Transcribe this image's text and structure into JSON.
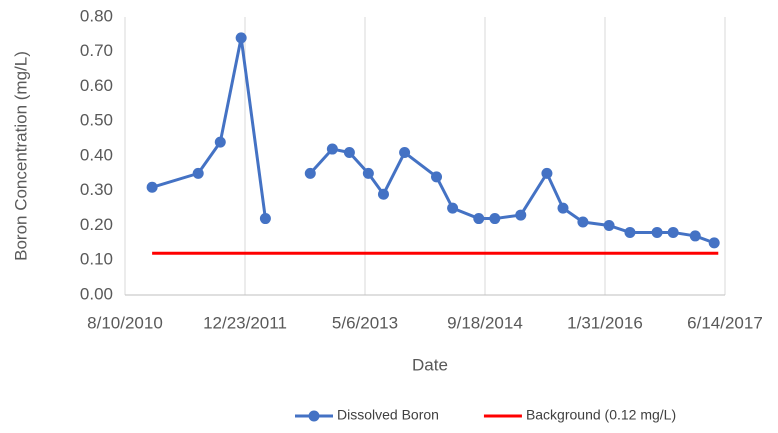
{
  "chart_data": {
    "type": "line",
    "xlabel": "Date",
    "ylabel": "Boron Concentration  (mg/L)",
    "xlim": [
      "2010-08-10",
      "2017-06-14"
    ],
    "xticks": [
      {
        "value": "2010-08-10",
        "label": "8/10/2010"
      },
      {
        "value": "2011-12-23",
        "label": "12/23/2011"
      },
      {
        "value": "2013-05-06",
        "label": "5/6/2013"
      },
      {
        "value": "2014-09-18",
        "label": "9/18/2014"
      },
      {
        "value": "2016-01-31",
        "label": "1/31/2016"
      },
      {
        "value": "2017-06-14",
        "label": "6/14/2017"
      }
    ],
    "ylim": [
      0,
      0.8
    ],
    "yticks": [
      {
        "value": 0,
        "label": "0.00"
      },
      {
        "value": 0.1,
        "label": "0.10"
      },
      {
        "value": 0.2,
        "label": "0.20"
      },
      {
        "value": 0.3,
        "label": "0.30"
      },
      {
        "value": 0.4,
        "label": "0.40"
      },
      {
        "value": 0.5,
        "label": "0.50"
      },
      {
        "value": 0.6,
        "label": "0.60"
      },
      {
        "value": 0.7,
        "label": "0.70"
      },
      {
        "value": 0.8,
        "label": "0.80"
      }
    ],
    "grid": "x",
    "legend": "bottom",
    "series": [
      {
        "name": "Dissolved Boron",
        "color": "#4472c4",
        "marker": true,
        "x": [
          "2010-12-01",
          "2011-06-11",
          "2011-09-11",
          "2011-12-07",
          "2012-03-17",
          null,
          "2012-09-20",
          "2012-12-21",
          "2013-03-02",
          "2013-05-20",
          "2013-07-22",
          "2013-10-18",
          "2014-02-28",
          "2014-05-06",
          "2014-08-23",
          "2014-10-29",
          "2015-02-14",
          "2015-06-03",
          "2015-08-09",
          "2015-10-31",
          "2016-02-17",
          "2016-05-14",
          "2016-09-04",
          "2016-11-10",
          "2017-02-10",
          "2017-04-30"
        ],
        "values": [
          0.31,
          0.35,
          0.44,
          0.74,
          0.22,
          null,
          0.35,
          0.42,
          0.41,
          0.35,
          0.29,
          0.41,
          0.34,
          0.25,
          0.22,
          0.22,
          0.23,
          0.35,
          0.25,
          0.21,
          0.2,
          0.18,
          0.18,
          0.18,
          0.17,
          0.15
        ]
      },
      {
        "name": "Background (0.12 mg/L)",
        "color": "#ff0000",
        "marker": false,
        "x": [
          "2010-12-01",
          "2017-05-17"
        ],
        "values": [
          0.12,
          0.12
        ]
      }
    ]
  }
}
